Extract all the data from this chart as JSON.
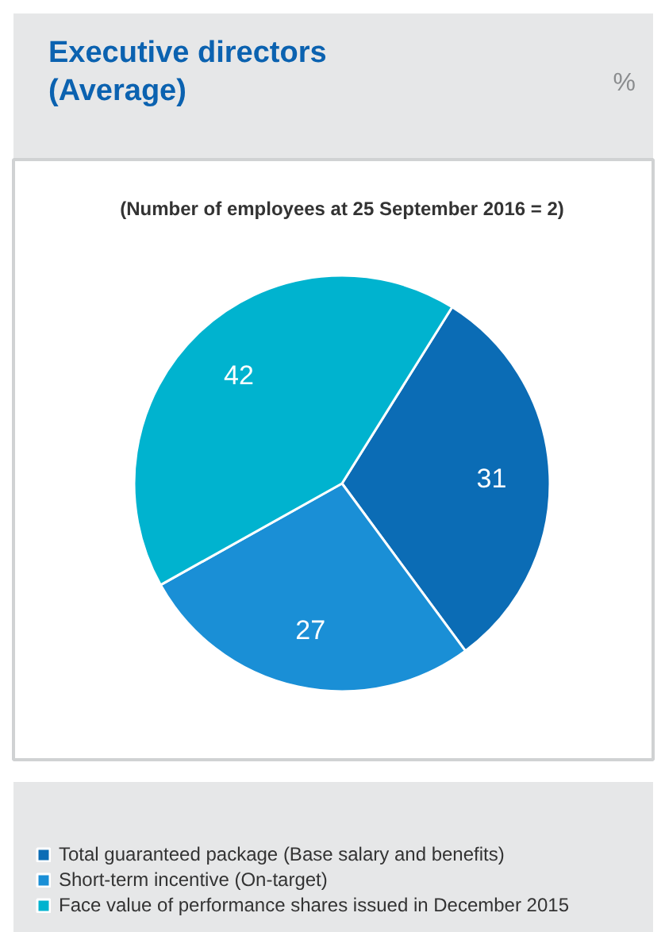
{
  "chart_data": {
    "type": "pie",
    "title": "Executive directors\n(Average)",
    "subtitle": "(Number of employees at 25 September 2016 = 2)",
    "annotations": [
      "%"
    ],
    "categories": [
      "Total guaranteed package (Base salary and benefits)",
      "Short-term incentive (On-target)",
      "Face value of performance shares issued in December 2015"
    ],
    "values": [
      31,
      27,
      42
    ],
    "colors": [
      "#0b6cb5",
      "#1a8fd6",
      "#00b3cf"
    ],
    "data_labels": true,
    "legend": "bottom"
  }
}
